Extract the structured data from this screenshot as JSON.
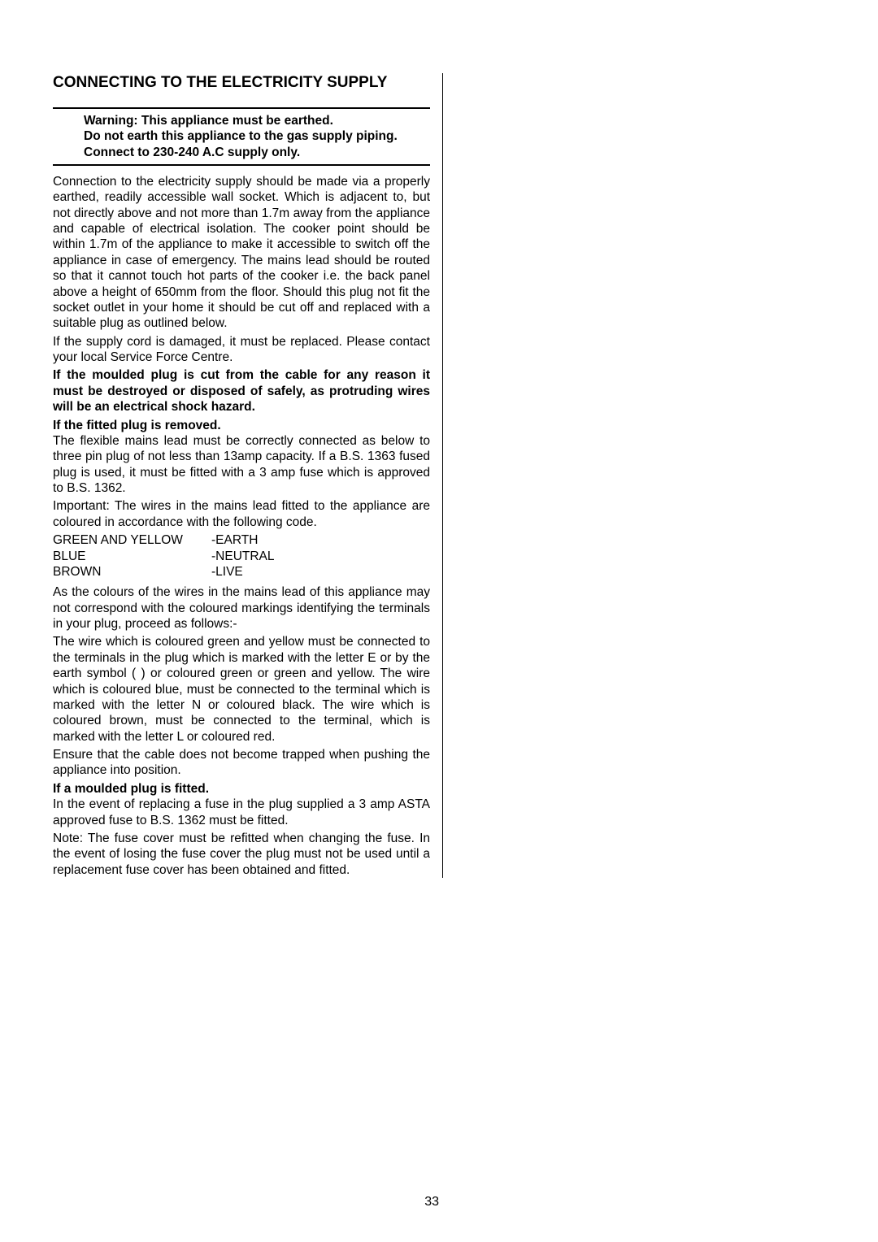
{
  "heading": "CONNECTING TO THE ELECTRICITY SUPPLY",
  "warning": {
    "line1": "Warning: This appliance must be earthed.",
    "line2": "Do not earth this appliance to the gas supply piping.",
    "line3": "Connect to 230-240 A.C supply only."
  },
  "para1": "Connection to the electricity supply should be made via a properly earthed, readily accessible wall socket. Which is adjacent to, but not directly above and not more than 1.7m away from the appliance and capable of electrical isolation. The cooker point should be within 1.7m of the appliance to make it accessible to switch off the appliance in case of emergency.  The mains lead should be routed so that it cannot touch hot parts of the cooker i.e. the back panel above a height of 650mm from the floor. Should this plug not fit the socket outlet in your home it should be cut off and replaced with a suitable plug as outlined below.",
  "para1b": "If the supply cord is damaged, it must be replaced. Please contact your local Service Force Centre.",
  "boldPara1": "If the moulded plug is cut from the cable for any reason it must be destroyed or disposed of safely, as protruding wires will be an electrical shock hazard.",
  "subheading1": "If the fitted plug is removed.",
  "para2": "The flexible mains lead must be correctly connected as below to three pin plug of not less than 13amp capacity.  If a B.S. 1363 fused plug is used, it must be fitted with a 3 amp fuse which is approved to B.S. 1362.",
  "para3": "Important:  The wires in the mains lead fitted to the appliance are coloured in accordance with the following code.",
  "wires": {
    "row1": {
      "color": "GREEN AND YELLOW",
      "terminal": "-EARTH"
    },
    "row2": {
      "color": "BLUE",
      "terminal": "-NEUTRAL"
    },
    "row3": {
      "color": "BROWN",
      "terminal": "-LIVE"
    }
  },
  "para4": "As the colours of the wires in the mains lead of this appliance may not correspond with the coloured markings identifying the terminals in your plug, proceed as follows:-",
  "para5": "The wire which is coloured green and yellow must be connected to the terminals in the plug which is marked with the letter E or by the earth symbol (      ) or coloured green or green and yellow.  The wire which is coloured blue, must be connected to the terminal which is marked with the letter N or coloured black.  The wire which is coloured brown, must be connected to the terminal, which is marked with the letter L or coloured red.",
  "para6": "Ensure that the cable does not become trapped when pushing the appliance into position.",
  "subheading2": "If a moulded plug is fitted.",
  "para7": "In the event of replacing a fuse in the plug supplied a 3 amp ASTA approved fuse to B.S. 1362 must be fitted.",
  "para8a": "Note",
  "para8b": ":  The fuse cover must be refitted when changing the fuse.  In the event of losing the fuse cover the plug must not be used until a replacement fuse cover has been obtained and fitted.",
  "pageNumber": "33"
}
